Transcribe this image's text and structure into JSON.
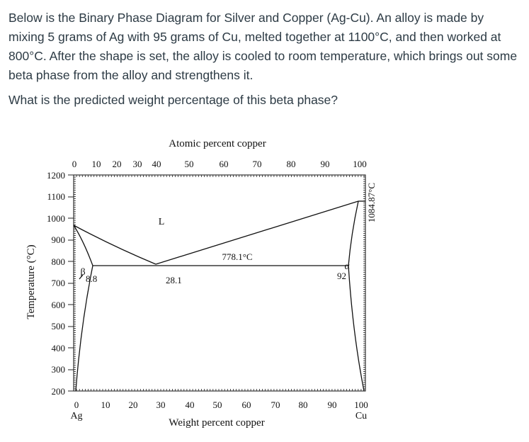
{
  "question": {
    "paragraph1": "Below is the Binary Phase Diagram for Silver and Copper (Ag-Cu). An alloy is made by mixing 5 grams of Ag with 95 grams of Cu, melted together at 1100°C, and then worked at 800°C. After the shape is set, the alloy is cooled to room temperature, which brings out some beta phase from the alloy and strengthens it.",
    "paragraph2": "What is the predicted weight percentage of this beta phase?"
  },
  "diagram": {
    "top_axis_title": "Atomic percent copper",
    "top_ticks": [
      "0",
      "10",
      "20",
      "30",
      "40",
      "50",
      "60",
      "70",
      "80",
      "90",
      "100"
    ],
    "bottom_axis_title": "Weight percent copper",
    "bottom_ticks": [
      "0",
      "10",
      "20",
      "30",
      "40",
      "50",
      "60",
      "70",
      "80",
      "90",
      "100"
    ],
    "left_axis_title": "Temperature (°C)",
    "y_ticks": [
      "1200",
      "1100",
      "1000",
      "900",
      "800",
      "700",
      "600",
      "500",
      "400",
      "300",
      "200"
    ],
    "element_left": "Ag",
    "element_right": "Cu",
    "right_melting_label": "1084.87°C",
    "labels": {
      "liquid": "L",
      "beta": "β",
      "alpha": "α",
      "eutectic_temp": "778.1°C",
      "beta_comp": "8.8",
      "eutectic_comp": "28.1",
      "alpha_comp": "92"
    },
    "phase_points": {
      "ag_melting_C": 961.8,
      "cu_melting_C": 1084.87,
      "eutectic_C": 778.1,
      "beta_max_solubility_wt": 8.8,
      "eutectic_wt": 28.1,
      "alpha_max_solubility_wt": 92
    }
  }
}
